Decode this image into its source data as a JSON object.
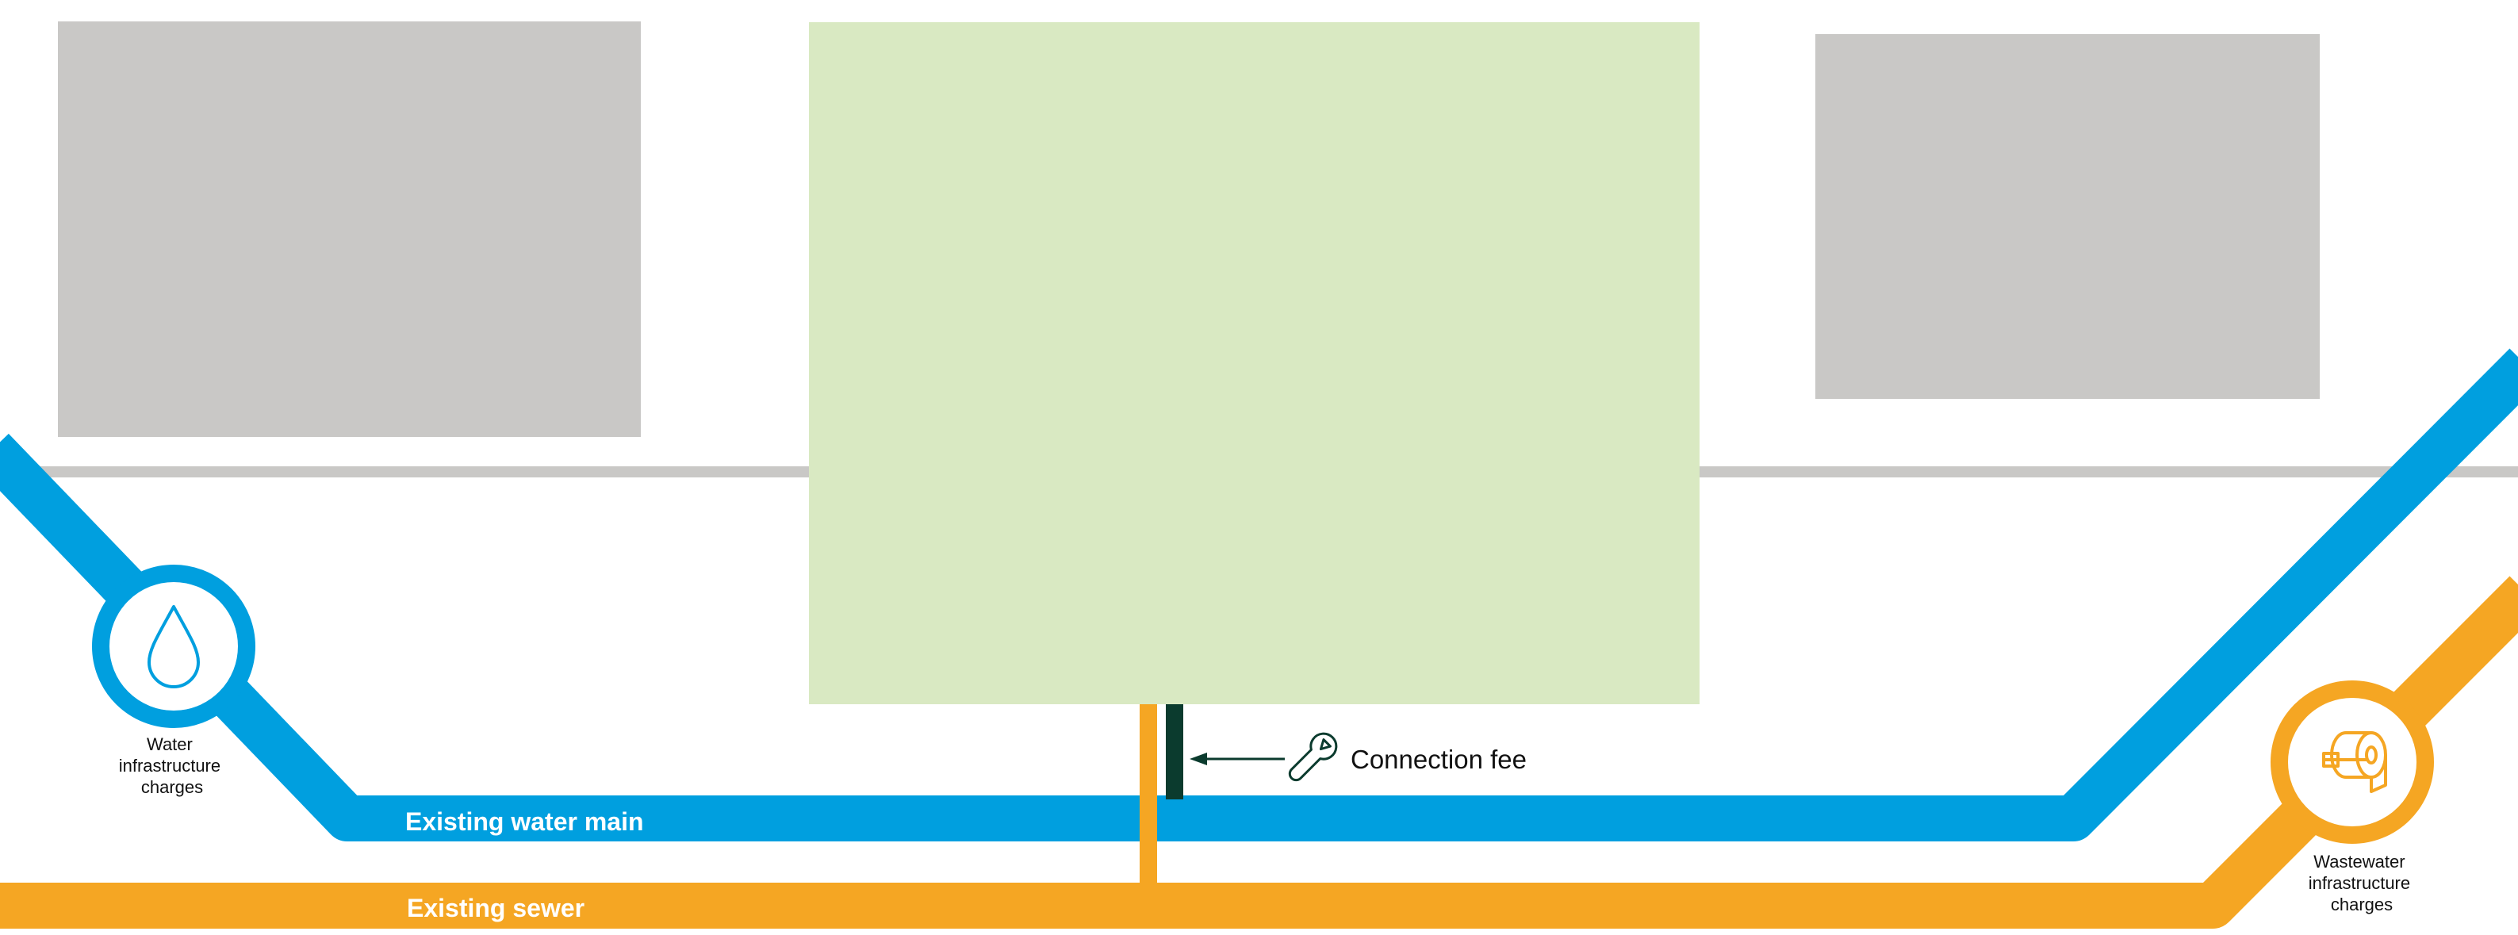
{
  "colors": {
    "water": "#009fdf",
    "sewer": "#f5a623",
    "road": "#c9c8c6",
    "building": "#c9c8c6",
    "site": "#d9e9c2",
    "connection": "#0b3b2e",
    "text_dark": "#111111",
    "text_light": "#ffffff"
  },
  "icons": {
    "water_badge": "water-drop-icon",
    "wastewater_badge": "toilet-paper-icon",
    "connection": "wrench-icon"
  },
  "labels": {
    "water_main": "Existing water main",
    "sewer": "Existing sewer",
    "connection_fee": "Connection fee",
    "water_charges": [
      "Water",
      "infrastructure",
      "charges"
    ],
    "wastewater_charges": [
      "Wastewater",
      "infrastructure",
      "charges"
    ]
  }
}
